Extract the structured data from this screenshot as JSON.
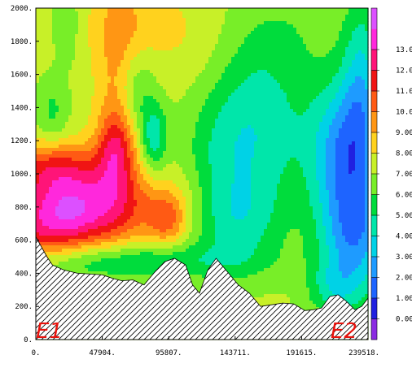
{
  "chart_data": {
    "type": "heatmap",
    "title": "",
    "xlabel": "",
    "ylabel": "",
    "xlim": [
      0,
      239518
    ],
    "ylim": [
      0,
      2000
    ],
    "x_ticks": [
      0,
      47904,
      95807,
      143711,
      191615,
      239518
    ],
    "x_tick_labels": [
      "0.",
      "47904.",
      "95807.",
      "143711.",
      "191615.",
      "239518."
    ],
    "y_ticks": [
      0,
      200,
      400,
      600,
      800,
      1000,
      1200,
      1400,
      1600,
      1800,
      2000
    ],
    "y_tick_labels": [
      "0.",
      "200.",
      "400.",
      "600.",
      "800.",
      "1000.",
      "1200.",
      "1400.",
      "1600.",
      "1800.",
      "2000."
    ],
    "colorbar": {
      "labels": [
        "0.000",
        "1.000",
        "2.000",
        "3.000",
        "4.000",
        "5.000",
        "6.000",
        "7.000",
        "8.000",
        "9.000",
        "10.00",
        "11.00",
        "12.00",
        "13.00"
      ],
      "levels": [
        -1,
        0,
        1,
        2,
        3,
        4,
        5,
        6,
        7,
        8,
        9,
        10,
        11,
        12,
        13,
        14
      ],
      "colors": [
        "#8b2be2",
        "#2020e0",
        "#1e64ff",
        "#1e9bff",
        "#00d2e6",
        "#00e6aa",
        "#00dc3c",
        "#78ee28",
        "#c8f028",
        "#ffd21e",
        "#ff9614",
        "#ff5a14",
        "#f01414",
        "#ff1478",
        "#ff28dc",
        "#dc50ff"
      ]
    },
    "endpoints": [
      "E1",
      "E2"
    ],
    "terrain_profile": {
      "x": [
        0,
        4000,
        8000,
        12000,
        20000,
        30000,
        40000,
        48000,
        55000,
        62000,
        70000,
        78000,
        86000,
        93000,
        100000,
        108000,
        113000,
        118000,
        124000,
        130000,
        138000,
        146000,
        154000,
        162000,
        170000,
        178000,
        186000,
        194000,
        200000,
        206000,
        212000,
        218000,
        224000,
        230000,
        235000,
        239518
      ],
      "y": [
        620,
        560,
        500,
        450,
        420,
        400,
        395,
        390,
        370,
        355,
        360,
        330,
        410,
        470,
        490,
        450,
        330,
        280,
        420,
        490,
        410,
        330,
        280,
        200,
        210,
        220,
        215,
        175,
        180,
        190,
        260,
        270,
        230,
        180,
        200,
        250
      ]
    },
    "field_model": {
      "background": 7.3,
      "blobs": [
        {
          "x0": 22000,
          "y0": 820,
          "sx": 32000,
          "sy": 170,
          "amp": 5.5,
          "rot": -0.35
        },
        {
          "x0": 40000,
          "y0": 700,
          "sx": 55000,
          "sy": 140,
          "amp": 2.2,
          "rot": -0.25
        },
        {
          "x0": 8000,
          "y0": 1050,
          "sx": 22000,
          "sy": 110,
          "amp": 2.8,
          "rot": 0.0
        },
        {
          "x0": 60000,
          "y0": 1500,
          "sx": 12000,
          "sy": 500,
          "amp": 2.0,
          "rot": 0.0
        },
        {
          "x0": 57000,
          "y0": 1150,
          "sx": 9000,
          "sy": 160,
          "amp": 3.0,
          "rot": 0.0
        },
        {
          "x0": 95000,
          "y0": 720,
          "sx": 10000,
          "sy": 110,
          "amp": 2.6,
          "rot": 0.0
        },
        {
          "x0": 72000,
          "y0": 1500,
          "sx": 9000,
          "sy": 180,
          "amp": -2.0,
          "rot": 0.0
        },
        {
          "x0": 85000,
          "y0": 1220,
          "sx": 7000,
          "sy": 150,
          "amp": -3.0,
          "rot": 0.0
        },
        {
          "x0": 12000,
          "y0": 1370,
          "sx": 8000,
          "sy": 150,
          "amp": -1.5,
          "rot": 0.0
        },
        {
          "x0": 22000,
          "y0": 1900,
          "sx": 6000,
          "sy": 160,
          "amp": -1.5,
          "rot": 0.0
        },
        {
          "x0": 75000,
          "y0": 1900,
          "sx": 30000,
          "sy": 180,
          "amp": 1.0,
          "rot": 0.0
        },
        {
          "x0": 160000,
          "y0": 1300,
          "sx": 28000,
          "sy": 400,
          "amp": -3.0,
          "rot": 0.0
        },
        {
          "x0": 145000,
          "y0": 720,
          "sx": 22000,
          "sy": 220,
          "amp": -2.2,
          "rot": 0.0
        },
        {
          "x0": 130000,
          "y0": 1100,
          "sx": 18000,
          "sy": 300,
          "amp": -1.0,
          "rot": 0.0
        },
        {
          "x0": 222000,
          "y0": 1150,
          "sx": 17000,
          "sy": 300,
          "amp": -4.5,
          "rot": 0.0
        },
        {
          "x0": 230000,
          "y0": 620,
          "sx": 18000,
          "sy": 260,
          "amp": -4.5,
          "rot": 0.0
        },
        {
          "x0": 235000,
          "y0": 1550,
          "sx": 10000,
          "sy": 400,
          "amp": -3.0,
          "rot": 0.0
        },
        {
          "x0": 215000,
          "y0": 300,
          "sx": 14000,
          "sy": 120,
          "amp": -2.0,
          "rot": 0.0
        },
        {
          "x0": 60000,
          "y0": 470,
          "sx": 60000,
          "sy": 80,
          "amp": -2.5,
          "rot": 0.0
        },
        {
          "x0": 120000,
          "y0": 1700,
          "sx": 20000,
          "sy": 250,
          "amp": 0.6,
          "rot": 0.0
        },
        {
          "x0": 185000,
          "y0": 1900,
          "sx": 25000,
          "sy": 200,
          "amp": -0.6,
          "rot": 0.0
        }
      ]
    }
  }
}
